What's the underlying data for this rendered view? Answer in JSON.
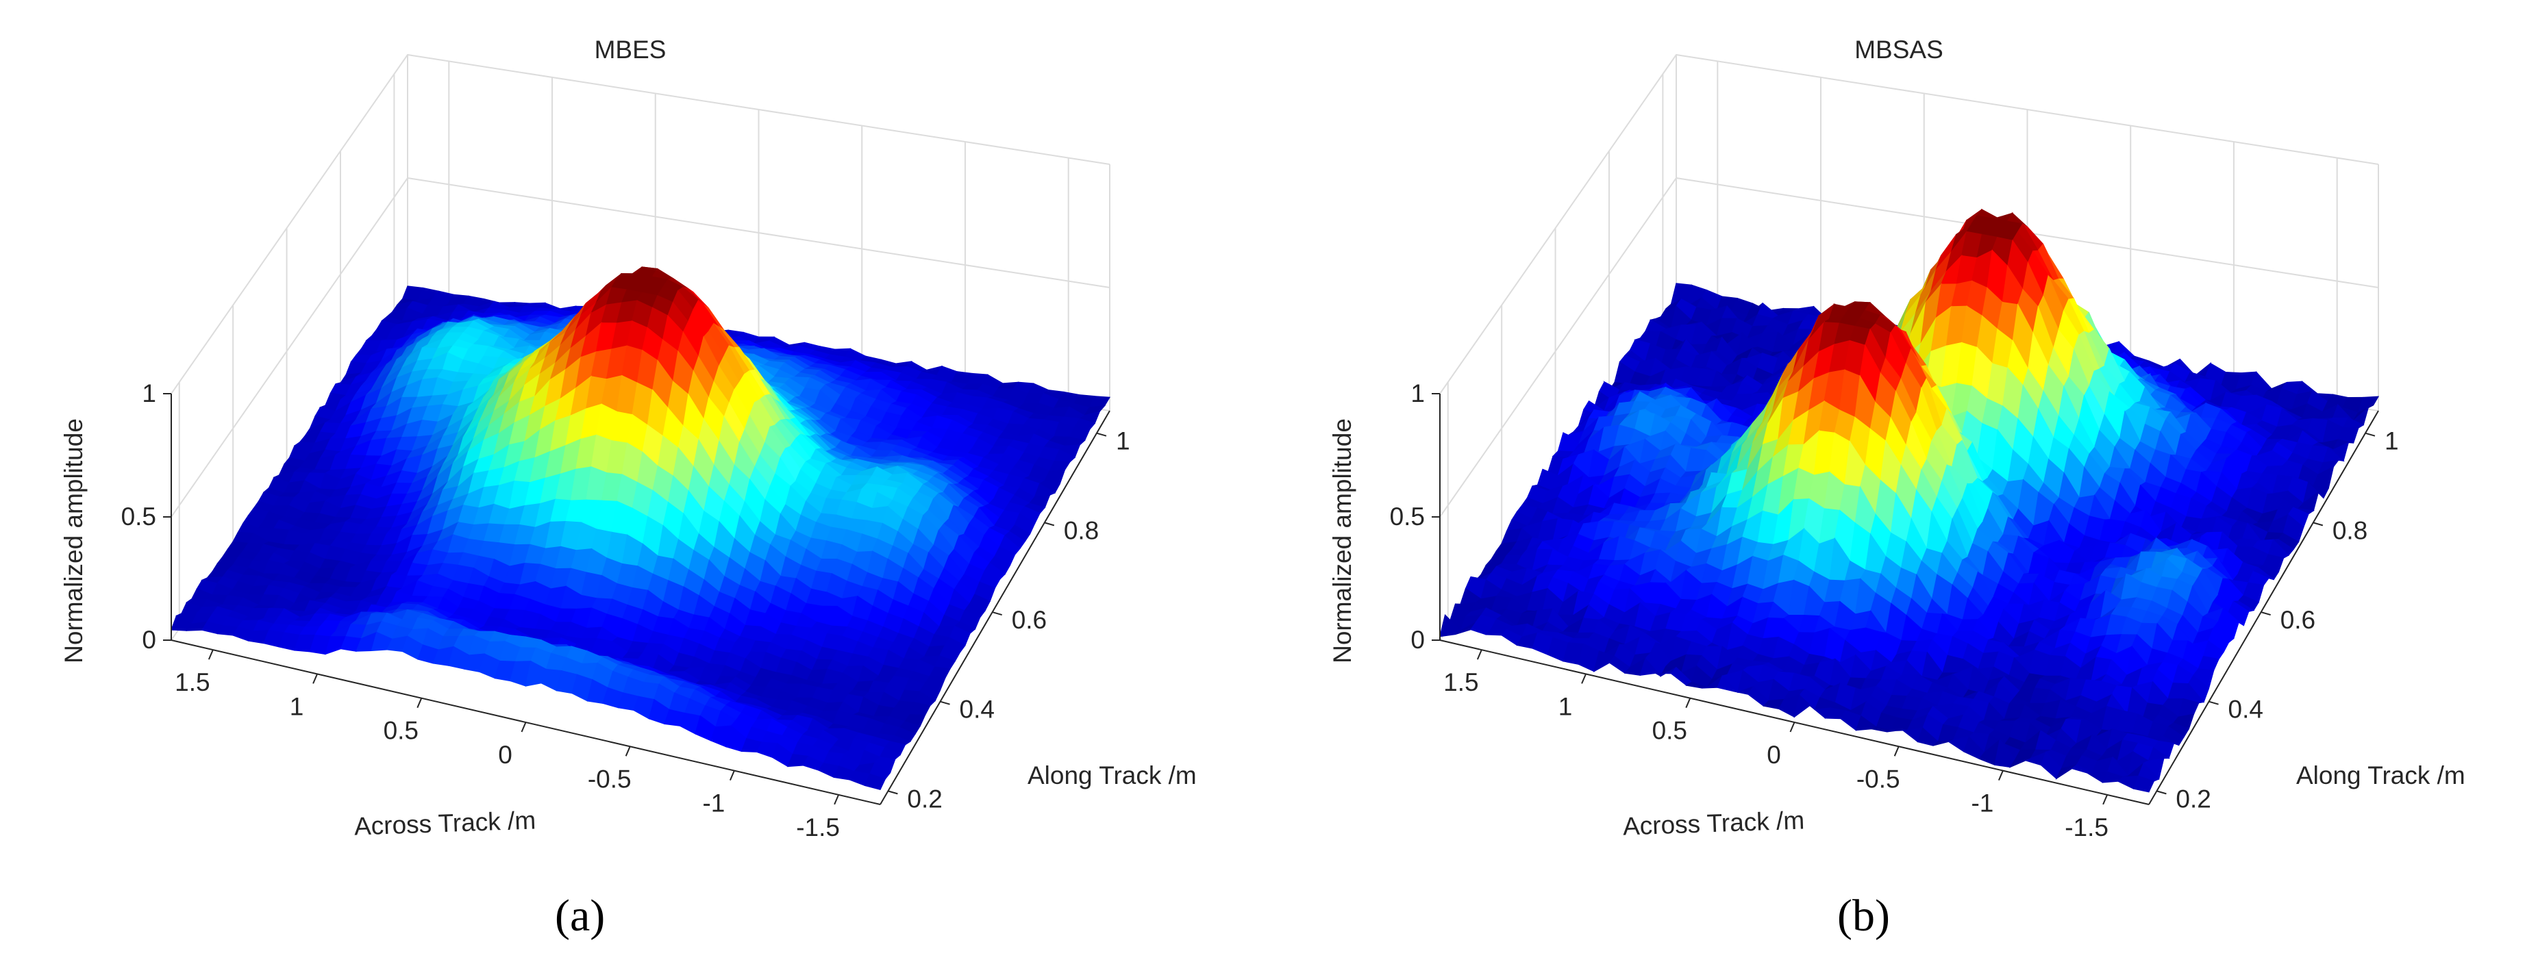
{
  "chart_data": [
    {
      "type": "surface3d",
      "title": "MBES",
      "caption": "(a)",
      "xlabel": "Across Track /m",
      "ylabel": "Along Track /m",
      "zlabel": "Normalized amplitude",
      "xlim": [
        -1.7,
        1.7
      ],
      "ylim": [
        0.17,
        1.05
      ],
      "zlim": [
        0,
        1
      ],
      "x_ticks": [
        "1.5",
        "1",
        "0.5",
        "0",
        "-0.5",
        "-1",
        "-1.5"
      ],
      "y_ticks": [
        "0.2",
        "0.4",
        "0.6",
        "0.8",
        "1"
      ],
      "z_ticks": [
        "0",
        "0.5",
        "1"
      ],
      "x_tick_values": [
        1.5,
        1,
        0.5,
        0,
        -0.5,
        -1,
        -1.5
      ],
      "y_tick_values": [
        0.2,
        0.4,
        0.6,
        0.8,
        1
      ],
      "z_tick_values": [
        0,
        0.5,
        1
      ],
      "colormap": "jet",
      "grid": true,
      "peaks": [
        {
          "across": 0.0,
          "along": 0.6,
          "amplitude": 1.0
        }
      ]
    },
    {
      "type": "surface3d",
      "title": "MBSAS",
      "caption": "(b)",
      "xlabel": "Across Track /m",
      "ylabel": "Along Track /m",
      "zlabel": "Normalized amplitude",
      "xlim": [
        -1.7,
        1.7
      ],
      "ylim": [
        0.17,
        1.05
      ],
      "zlim": [
        0,
        1
      ],
      "x_ticks": [
        "1.5",
        "1",
        "0.5",
        "0",
        "-0.5",
        "-1",
        "-1.5"
      ],
      "y_ticks": [
        "0.2",
        "0.4",
        "0.6",
        "0.8",
        "1"
      ],
      "z_ticks": [
        "0",
        "0.5",
        "1"
      ],
      "x_tick_values": [
        1.5,
        1,
        0.5,
        0,
        -0.5,
        -1,
        -1.5
      ],
      "y_tick_values": [
        0.2,
        0.4,
        0.6,
        0.8,
        1
      ],
      "z_tick_values": [
        0,
        0.5,
        1
      ],
      "colormap": "jet",
      "grid": true,
      "peaks": [
        {
          "across": 0.15,
          "along": 0.5,
          "amplitude": 1.0
        },
        {
          "across": -0.2,
          "along": 0.7,
          "amplitude": 1.0
        }
      ]
    }
  ]
}
